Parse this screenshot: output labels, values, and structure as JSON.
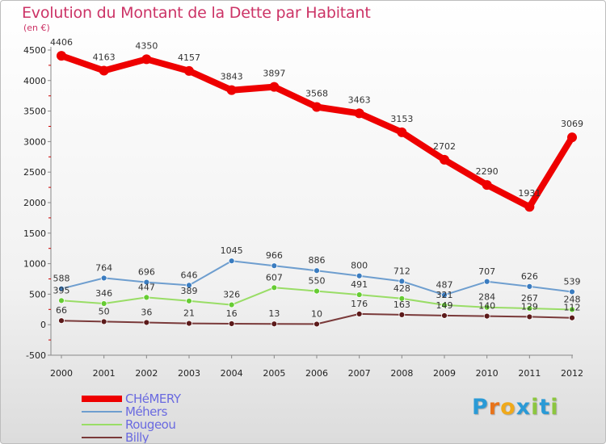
{
  "title": "Evolution du Montant de la Dette par Habitant",
  "unit_label": "(en €)",
  "watermark": {
    "text": "Proxiti",
    "letters": [
      {
        "ch": "P",
        "color": "#2a9ad6"
      },
      {
        "ch": "r",
        "color": "#e8731a"
      },
      {
        "ch": "o",
        "color": "#f0a91a"
      },
      {
        "ch": "x",
        "color": "#2a9ad6"
      },
      {
        "ch": "i",
        "color": "#8cc63f"
      },
      {
        "ch": "t",
        "color": "#2a9ad6"
      },
      {
        "ch": "i",
        "color": "#8cc63f"
      }
    ]
  },
  "chart_data": {
    "type": "line",
    "title": "Evolution du Montant de la Dette par Habitant",
    "ylabel": "(en €)",
    "xlabel": "",
    "ylim": [
      -500,
      4500
    ],
    "yticks": [
      -500,
      0,
      500,
      1000,
      1500,
      2000,
      2500,
      3000,
      3500,
      4000,
      4500
    ],
    "grid": false,
    "legend_position": "bottom-left",
    "categories": [
      "2000",
      "2001",
      "2002",
      "2003",
      "2004",
      "2005",
      "2006",
      "2007",
      "2008",
      "2009",
      "2010",
      "2011",
      "2012"
    ],
    "series": [
      {
        "name": "CHéMERY",
        "color": "#ee0000",
        "emphasis": true,
        "values": [
          4406,
          4163,
          4350,
          4157,
          3843,
          3897,
          3568,
          3463,
          3153,
          2702,
          2290,
          1931,
          3069
        ]
      },
      {
        "name": "Méhers",
        "color": "#6e9ecf",
        "point_color": "#3a7cc0",
        "values": [
          588,
          764,
          696,
          646,
          1045,
          966,
          886,
          800,
          712,
          487,
          707,
          626,
          539
        ]
      },
      {
        "name": "Rougeou",
        "color": "#99dd66",
        "point_color": "#66cc33",
        "values": [
          395,
          346,
          447,
          389,
          326,
          607,
          550,
          491,
          428,
          321,
          284,
          267,
          248
        ]
      },
      {
        "name": "Billy",
        "color": "#7a3a3a",
        "point_color": "#5c1a1a",
        "values": [
          66,
          50,
          36,
          21,
          16,
          13,
          10,
          176,
          163,
          149,
          140,
          129,
          112
        ]
      }
    ]
  }
}
